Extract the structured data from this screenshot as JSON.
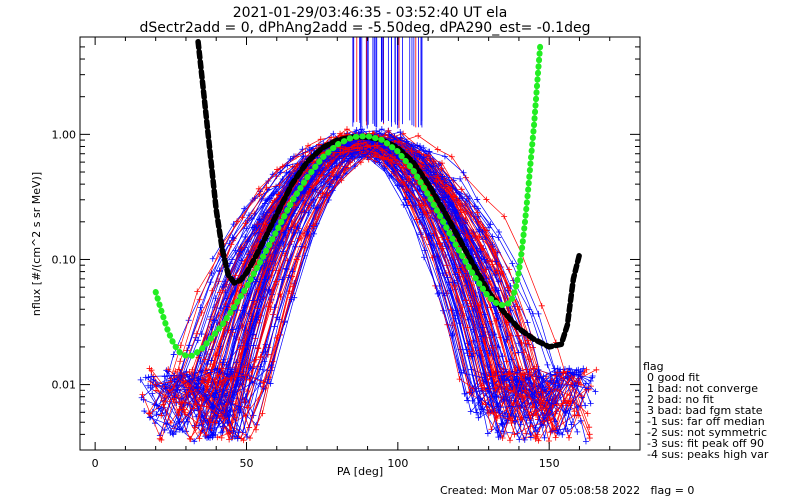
{
  "chart_data": {
    "type": "line",
    "title": "2021-01-29/03:46:35 - 03:52:40 UT ela",
    "subtitle": "dSectr2add = 0, dPhAng2add = -5.50deg, dPA290_est=  -0.1deg",
    "xlabel": "PA [deg]",
    "ylabel": "nflux [#/(cm^2 s sr MeV)]",
    "xlim": [
      -5,
      180
    ],
    "ylim": [
      0.003,
      6
    ],
    "yscale": "log",
    "x_ticks": [
      {
        "value": 0,
        "label": "0"
      },
      {
        "value": 50,
        "label": "50"
      },
      {
        "value": 100,
        "label": "100"
      },
      {
        "value": 150,
        "label": "150"
      }
    ],
    "y_ticks": [
      {
        "value": 0.01,
        "label": "0.01"
      },
      {
        "value": 0.1,
        "label": "0.10"
      },
      {
        "value": 1.0,
        "label": "1.00"
      }
    ],
    "series": [
      {
        "color": "#000000",
        "style": "thick-dashed",
        "x": [
          34,
          36,
          38,
          40,
          42,
          44,
          46,
          48,
          50,
          52,
          55,
          60,
          65,
          70,
          75,
          80,
          85,
          90,
          95,
          100,
          105,
          110,
          115,
          120,
          125,
          130,
          135,
          140,
          145,
          150,
          154,
          156,
          158,
          160
        ],
        "y": [
          5.5,
          2.0,
          0.7,
          0.25,
          0.12,
          0.075,
          0.065,
          0.068,
          0.078,
          0.095,
          0.13,
          0.23,
          0.4,
          0.6,
          0.78,
          0.9,
          0.95,
          0.95,
          0.9,
          0.78,
          0.6,
          0.4,
          0.25,
          0.15,
          0.09,
          0.055,
          0.038,
          0.028,
          0.023,
          0.02,
          0.021,
          0.03,
          0.07,
          0.11
        ]
      },
      {
        "color": "#22ee22",
        "style": "thick-dotted",
        "x": [
          20,
          22,
          24,
          26,
          28,
          30,
          32,
          35,
          38,
          42,
          46,
          50,
          55,
          60,
          65,
          70,
          75,
          80,
          85,
          90,
          95,
          100,
          105,
          110,
          115,
          120,
          125,
          130,
          133,
          135,
          137,
          138,
          139,
          140,
          141,
          142,
          143,
          144,
          145,
          146,
          147
        ],
        "y": [
          0.055,
          0.038,
          0.027,
          0.021,
          0.018,
          0.017,
          0.017,
          0.019,
          0.023,
          0.03,
          0.042,
          0.06,
          0.1,
          0.17,
          0.29,
          0.45,
          0.65,
          0.83,
          0.95,
          0.97,
          0.9,
          0.73,
          0.52,
          0.33,
          0.2,
          0.12,
          0.075,
          0.05,
          0.044,
          0.043,
          0.045,
          0.05,
          0.06,
          0.08,
          0.12,
          0.2,
          0.35,
          0.65,
          1.2,
          2.5,
          5.0
        ]
      }
    ],
    "legend": {
      "placement": "bottom-right outside",
      "title": "flag",
      "entries": [
        " 0 good fit",
        " 1 bad: not converge",
        " 2 bad: no fit",
        " 3 bad: bad fgm state",
        "-1 sus: far off median",
        "-2 sus: not symmetric",
        "-3 sus: fit peak off 90",
        "-4 sus: peaks high var"
      ]
    },
    "footer": "Created: Mon Mar 07 05:08:58 2022   flag = 0",
    "colors": {
      "measured_low": "#ff0000",
      "measured_high": "#0000ff",
      "fit_black": "#000000",
      "fit_green": "#22ee22"
    }
  }
}
